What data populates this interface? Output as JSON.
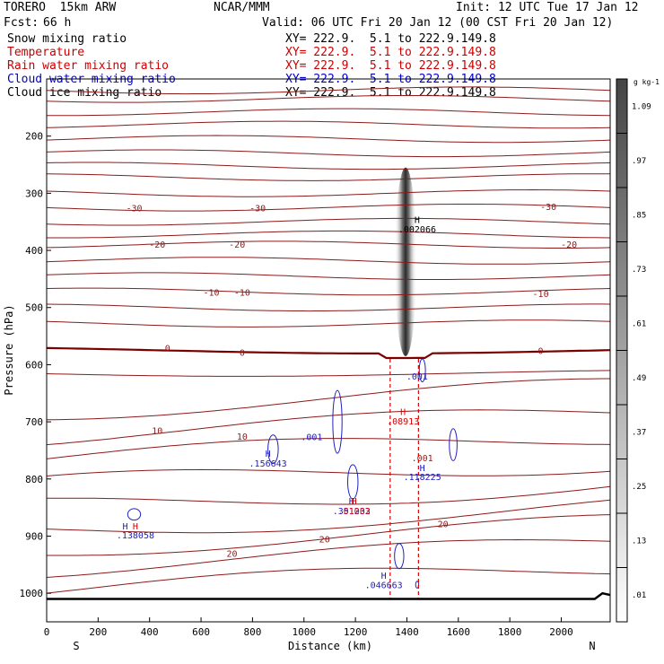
{
  "header": {
    "model": "TORERO  15km ARW",
    "org": "NCAR/MMM",
    "init": "Init: 12 UTC Tue 17 Jan 12",
    "fcst_label": "Fcst:",
    "fcst_value": "66 h",
    "valid": "Valid: 06 UTC Fri 20 Jan 12 (00 CST Fri 20 Jan 12)"
  },
  "fields": [
    {
      "label": "Snow mixing ratio",
      "xy": "XY= 222.9.  5.1 to 222.9.149.8",
      "color": "#000000"
    },
    {
      "label": "Temperature",
      "xy": "XY= 222.9.  5.1 to 222.9.149.8",
      "color": "#cc0000"
    },
    {
      "label": "Rain water mixing ratio",
      "xy": "XY= 222.9.  5.1 to 222.9.149.8",
      "color": "#cc0000"
    },
    {
      "label": "Cloud water mixing ratio",
      "xy": "XY= 222.9.  5.1 to 222.9.149.8",
      "color": "#0000cc"
    },
    {
      "label": "Cloud ice mixing ratio",
      "xy": "XY= 222.9.  5.1 to 222.9.149.8",
      "color": "#000000"
    }
  ],
  "colors": {
    "temperature": "#8b1a1a",
    "freezing": "#7a0000",
    "cloud_water": "#2020c0",
    "rain": "#dd0000",
    "snow_shade": "#222222",
    "terrain": "#000000"
  },
  "chart_data": {
    "type": "cross-section",
    "xlabel": "Distance (km)",
    "ylabel": "Pressure (hPa)",
    "xlim": [
      0,
      2190
    ],
    "ylim": [
      1050,
      100
    ],
    "x_ticks": [
      0,
      200,
      400,
      600,
      800,
      1000,
      1200,
      1400,
      1600,
      1800,
      2000
    ],
    "y_ticks": [
      200,
      300,
      400,
      500,
      600,
      700,
      800,
      900,
      1000
    ],
    "left_end": "S",
    "right_end": "N",
    "temperature_labels": [
      {
        "text": "-30",
        "x": 340,
        "p": 325
      },
      {
        "text": "-30",
        "x": 820,
        "p": 325
      },
      {
        "text": "-30",
        "x": 1950,
        "p": 323
      },
      {
        "text": "-20",
        "x": 430,
        "p": 389
      },
      {
        "text": "-20",
        "x": 740,
        "p": 389
      },
      {
        "text": "-20",
        "x": 2030,
        "p": 389
      },
      {
        "text": "-10",
        "x": 640,
        "p": 473
      },
      {
        "text": "-10",
        "x": 760,
        "p": 473
      },
      {
        "text": "-10",
        "x": 1920,
        "p": 475
      },
      {
        "text": "0",
        "x": 470,
        "p": 570
      },
      {
        "text": "0",
        "x": 760,
        "p": 578
      },
      {
        "text": "0",
        "x": 1920,
        "p": 575
      },
      {
        "text": "10",
        "x": 430,
        "p": 715
      },
      {
        "text": "10",
        "x": 760,
        "p": 725
      },
      {
        "text": "20",
        "x": 1540,
        "p": 878
      },
      {
        "text": "20",
        "x": 1080,
        "p": 905
      },
      {
        "text": "20",
        "x": 720,
        "p": 930
      }
    ],
    "annotations": [
      {
        "text": "H",
        "x": 1440,
        "p": 346,
        "color": "#000000"
      },
      {
        "text": ".002066",
        "x": 1440,
        "p": 362,
        "color": "#000000"
      },
      {
        "text": ".001",
        "x": 1440,
        "p": 620,
        "color": "#2020c0"
      },
      {
        "text": "H",
        "x": 1385,
        "p": 682,
        "color": "#dd0000"
      },
      {
        "text": ".08913",
        "x": 1385,
        "p": 698,
        "color": "#dd0000"
      },
      {
        "text": ".001",
        "x": 1030,
        "p": 726,
        "color": "#2020c0"
      },
      {
        "text": "H",
        "x": 860,
        "p": 755,
        "color": "#2020c0"
      },
      {
        "text": ".156643",
        "x": 860,
        "p": 772,
        "color": "#2020c0"
      },
      {
        "text": ".001",
        "x": 1460,
        "p": 763,
        "color": "#dd0000"
      },
      {
        "text": "H",
        "x": 1460,
        "p": 780,
        "color": "#2020c0"
      },
      {
        "text": ".118225",
        "x": 1460,
        "p": 796,
        "color": "#2020c0"
      },
      {
        "text": "H",
        "x": 1185,
        "p": 838,
        "color": "#2020c0"
      },
      {
        "text": ".351232",
        "x": 1185,
        "p": 855,
        "color": "#2020c0"
      },
      {
        "text": "H",
        "x": 1195,
        "p": 838,
        "color": "#dd0000"
      },
      {
        "text": ".01003",
        "x": 1195,
        "p": 855,
        "color": "#dd0000"
      },
      {
        "text": "H",
        "x": 305,
        "p": 882,
        "color": "#2020c0"
      },
      {
        "text": "H",
        "x": 345,
        "p": 882,
        "color": "#dd0000"
      },
      {
        "text": ".138058",
        "x": 345,
        "p": 898,
        "color": "#2020c0"
      },
      {
        "text": "H",
        "x": 1310,
        "p": 968,
        "color": "#2020c0"
      },
      {
        "text": ".046663",
        "x": 1310,
        "p": 985,
        "color": "#2020c0"
      }
    ],
    "colorbar": {
      "unit": "g kg-1",
      "labels": [
        ".01",
        ".13",
        ".25",
        ".37",
        ".49",
        ".61",
        ".73",
        ".85",
        ".97",
        "1.09"
      ]
    }
  }
}
